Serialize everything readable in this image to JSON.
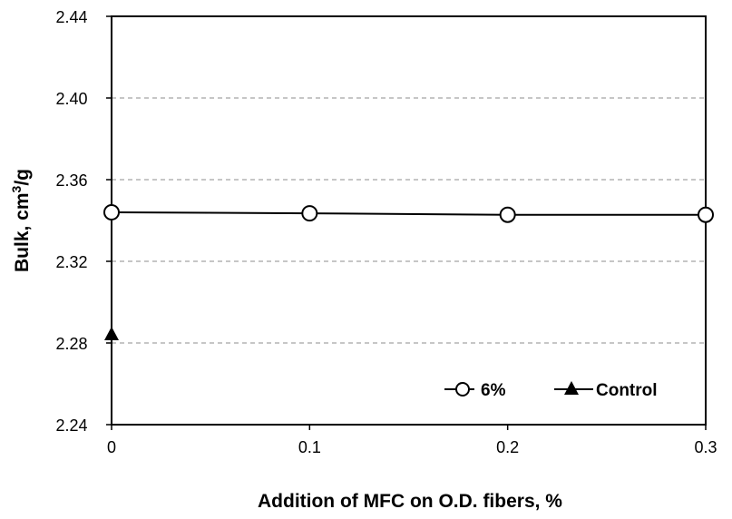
{
  "chart_data": {
    "type": "line",
    "title": "",
    "xlabel": "Addition of MFC on O.D. fibers, %",
    "ylabel_main": "Bulk, cm",
    "ylabel_sup": "3",
    "ylabel_tail": "/g",
    "xlim": [
      0,
      0.3
    ],
    "ylim": [
      2.24,
      2.44
    ],
    "x_ticks": [
      0,
      0.1,
      0.2,
      0.3
    ],
    "x_tick_labels": [
      "0",
      "0.1",
      "0.2",
      "0.3"
    ],
    "y_ticks": [
      2.24,
      2.28,
      2.32,
      2.36,
      2.4,
      2.44
    ],
    "y_tick_labels": [
      "2.24",
      "2.28",
      "2.32",
      "2.36",
      "2.40",
      "2.44"
    ],
    "grid": "horizontal dashed",
    "legend_position": "bottom-right",
    "series": [
      {
        "name": "6%",
        "marker": "circle-open",
        "color": "#000000",
        "x": [
          0,
          0.1,
          0.2,
          0.3
        ],
        "y": [
          2.344,
          2.3435,
          2.3428,
          2.3428
        ]
      },
      {
        "name": "Control",
        "marker": "triangle-filled",
        "color": "#000000",
        "x": [
          0
        ],
        "y": [
          2.284
        ]
      }
    ]
  }
}
